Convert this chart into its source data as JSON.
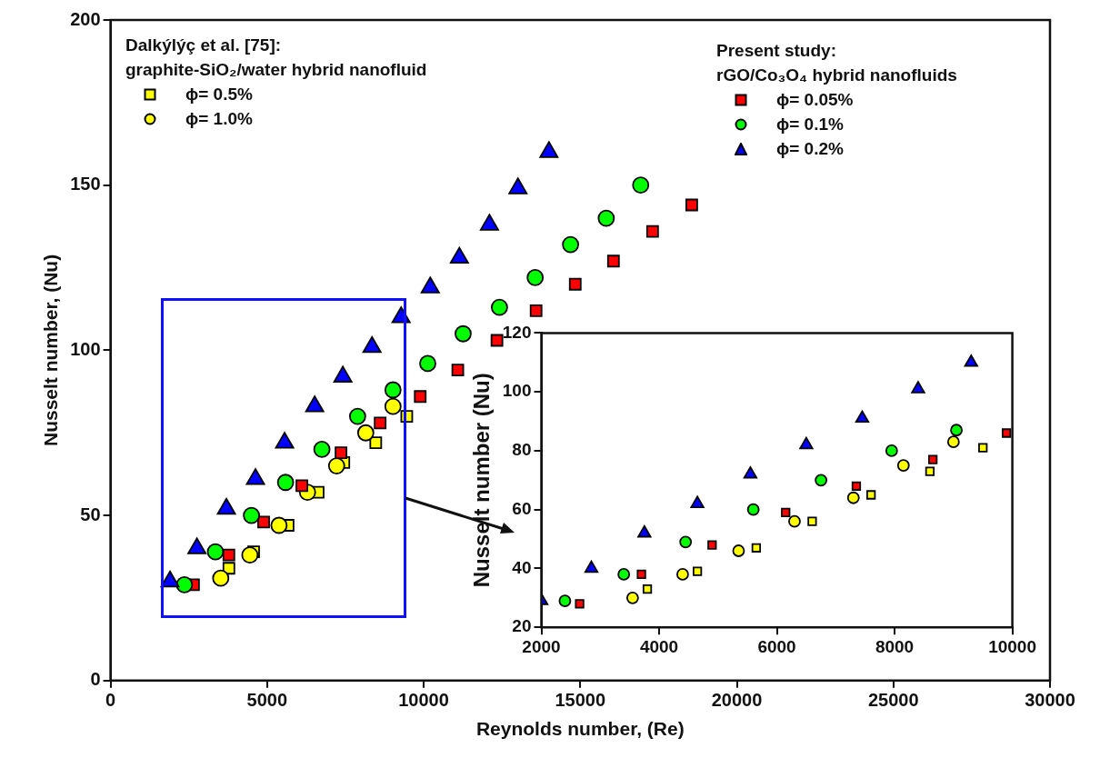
{
  "chart_data": [
    {
      "type": "scatter",
      "xlabel": "Reynolds number, (Re)",
      "ylabel": "Nusselt number, (Nu)",
      "xlim": [
        0,
        30000
      ],
      "xticks": [
        0,
        5000,
        10000,
        15000,
        20000,
        25000,
        30000
      ],
      "ylim": [
        0,
        200
      ],
      "yticks": [
        0,
        50,
        100,
        150,
        200
      ],
      "grid": false,
      "legend": "top",
      "annotations": [
        "Dalkýlýç et al. [75]:",
        "graphite-SiO₂/water hybrid nanofluid",
        "Present study:",
        "rGO/Co₃O₄ hybrid nanofluids"
      ],
      "series": [
        {
          "name": "ϕ= 0.5%",
          "color": "#ffff00",
          "marker": "square",
          "x": [
            3780,
            4570,
            5670,
            6630,
            7450,
            8470,
            9460
          ],
          "values": [
            34,
            39,
            47,
            57,
            66,
            72,
            80
          ]
        },
        {
          "name": "ϕ= 1.0%",
          "color": "#ffff00",
          "marker": "circle",
          "x": [
            3520,
            4450,
            5380,
            6290,
            7220,
            8150,
            9020
          ],
          "values": [
            31,
            38,
            47,
            57,
            65,
            75,
            83
          ]
        },
        {
          "name": "ϕ= 0.05%",
          "color": "#ff0000",
          "marker": "square",
          "x": [
            2650,
            3780,
            4890,
            6110,
            7360,
            8610,
            9890,
            11090,
            12340,
            13590,
            14840,
            16060,
            17310,
            18560
          ],
          "values": [
            29,
            38,
            48,
            59,
            69,
            78,
            86,
            94,
            103,
            112,
            120,
            127,
            136,
            144
          ]
        },
        {
          "name": "ϕ= 0.1%",
          "color": "#00ff00",
          "marker": "circle",
          "x": [
            2360,
            3350,
            4500,
            5590,
            6750,
            7890,
            9020,
            10130,
            11260,
            12420,
            13560,
            14690,
            15830,
            16930
          ],
          "values": [
            29,
            39,
            50,
            60,
            70,
            80,
            88,
            96,
            105,
            113,
            122,
            132,
            140,
            150
          ]
        },
        {
          "name": "ϕ= 0.2%",
          "color": "#0000ff",
          "marker": "triangle",
          "x": [
            1900,
            2760,
            3700,
            4630,
            5560,
            6520,
            7420,
            8350,
            9280,
            10210,
            11140,
            12100,
            13010,
            14000
          ],
          "values": [
            30,
            40,
            52,
            61,
            72,
            83,
            92,
            101,
            110,
            119,
            128,
            138,
            149,
            160
          ]
        }
      ]
    },
    {
      "type": "scatter",
      "ylabel": "Nusselt number (Nu)",
      "xlim": [
        2000,
        10000
      ],
      "xticks": [
        2000,
        4000,
        6000,
        8000,
        10000
      ],
      "ylim": [
        20,
        120
      ],
      "yticks": [
        20,
        40,
        60,
        80,
        100,
        120
      ],
      "grid": false,
      "series": [
        {
          "color": "#ffff00",
          "marker": "square",
          "x": [
            3800,
            4650,
            5650,
            6600,
            7600,
            8600,
            9500
          ],
          "values": [
            33,
            39,
            47,
            56,
            65,
            73,
            81
          ]
        },
        {
          "color": "#ffff00",
          "marker": "circle",
          "x": [
            3550,
            4400,
            5350,
            6300,
            7300,
            8150,
            9000
          ],
          "values": [
            30,
            38,
            46,
            56,
            64,
            75,
            83
          ]
        },
        {
          "color": "#ff0000",
          "marker": "square",
          "x": [
            2650,
            3700,
            4900,
            6150,
            7350,
            8650,
            9900
          ],
          "values": [
            28,
            38,
            48,
            59,
            68,
            77,
            86
          ]
        },
        {
          "color": "#00ff00",
          "marker": "circle",
          "x": [
            2400,
            3400,
            4450,
            5600,
            6750,
            7950,
            9050
          ],
          "values": [
            29,
            38,
            49,
            60,
            70,
            80,
            87
          ]
        },
        {
          "color": "#0000ff",
          "marker": "triangle",
          "x": [
            2000,
            2850,
            3750,
            4650,
            5550,
            6500,
            7450,
            8400,
            9300
          ],
          "values": [
            29,
            40,
            52,
            62,
            72,
            82,
            91,
            101,
            110
          ]
        }
      ]
    }
  ]
}
